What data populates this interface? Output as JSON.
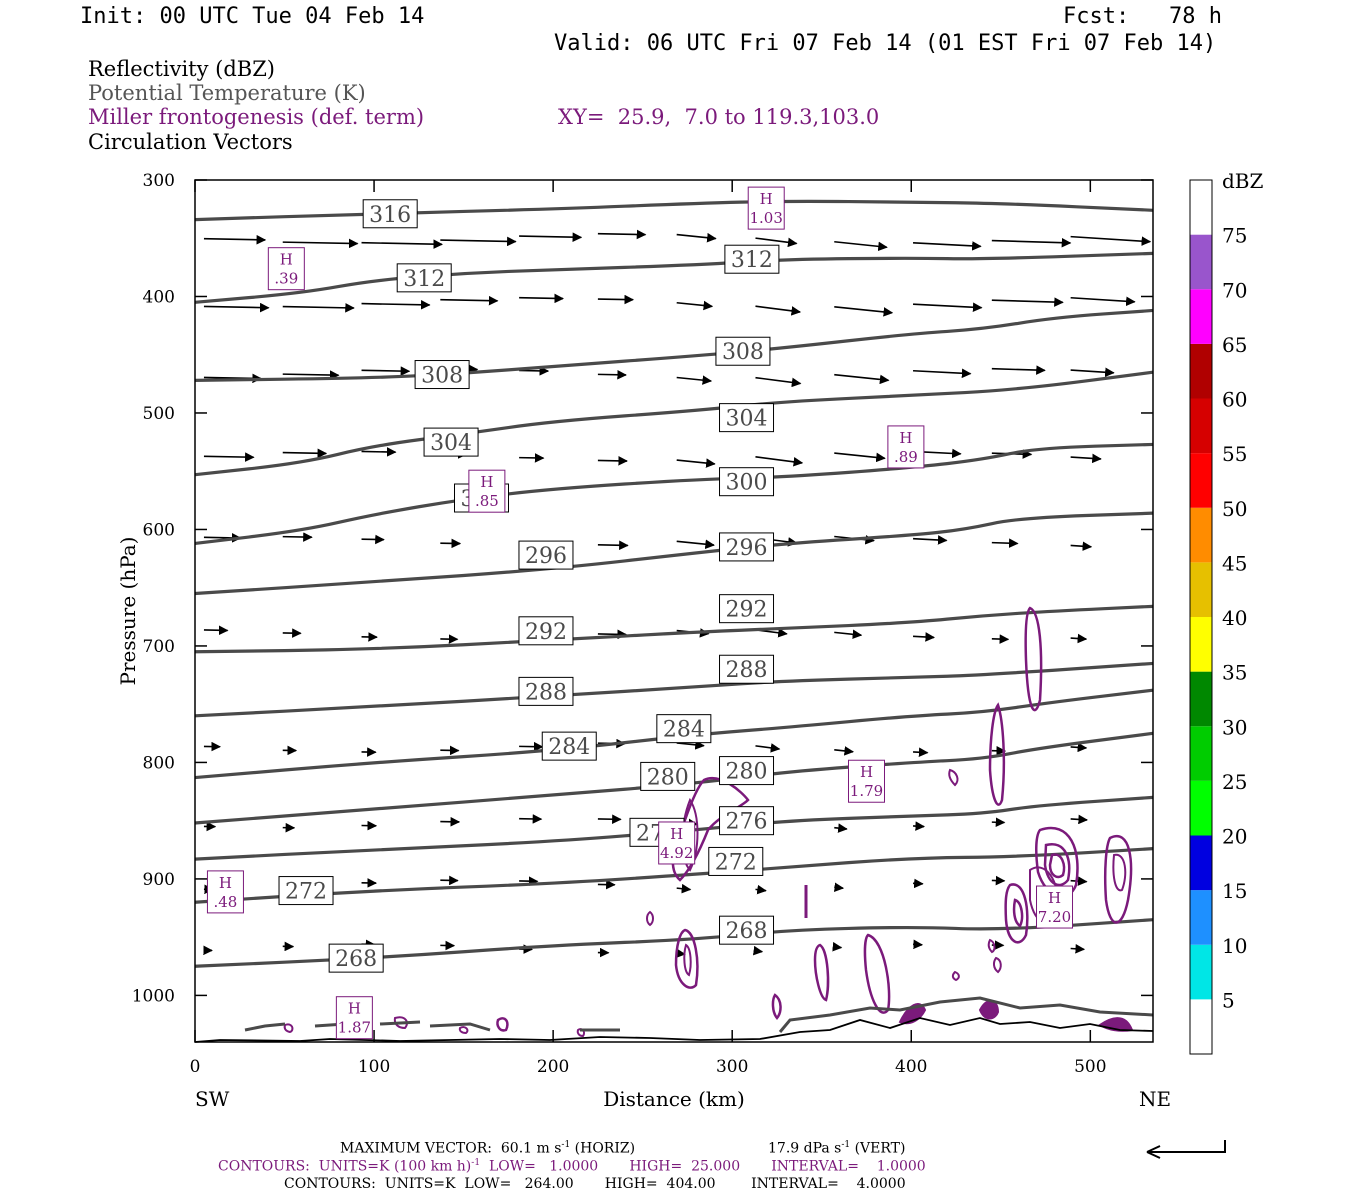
{
  "header": {
    "init": "Init: 00 UTC Tue 04 Feb 14",
    "fcst": "Fcst:   78 h",
    "valid": "Valid: 06 UTC Fri 07 Feb 14 (01 EST Fri 07 Feb 14)"
  },
  "legend": {
    "reflectivity": "Reflectivity (dBZ)",
    "theta": "Potential Temperature (K)",
    "frontogenesis": "Miller frontogenesis (def. term)",
    "xy": "XY=  25.9,  7.0 to 119.3,103.0",
    "vectors": "Circulation Vectors"
  },
  "footer": {
    "max_vector": "MAXIMUM VECTOR:  60.1 m s",
    "max_vector_sup": "-1",
    "max_vector_horiz": " (HORIZ)",
    "vert": "17.9 dPa s",
    "vert_sup": "-1",
    "vert_label": " (VERT)",
    "contours1": "CONTOURS:  UNITS=K (100 km h)",
    "contours1_sup": "-1",
    "contours1_rest": "  LOW=   1.0000       HIGH=  25.000       INTERVAL=    1.0000",
    "contours2": "CONTOURS:  UNITS=K  LOW=   264.00       HIGH=  404.00        INTERVAL=    4.0000"
  },
  "colors": {
    "theta": "#4a4a4a",
    "frontogenesis": "#7b1a7b",
    "vectors": "#000000"
  },
  "chart_data": {
    "type": "cross-section",
    "xlabel": "Distance (km)",
    "ylabel": "Pressure (hPa)",
    "xlim": [
      0,
      535
    ],
    "ylim": [
      1040,
      300
    ],
    "y_scale": "linear",
    "x_ticks": [
      0,
      100,
      200,
      300,
      400,
      500
    ],
    "y_ticks": [
      300,
      400,
      500,
      600,
      700,
      800,
      900,
      1000
    ],
    "left_end_label": "SW",
    "right_end_label": "NE",
    "colorbar": {
      "title": "dBZ",
      "levels": [
        5,
        10,
        15,
        20,
        25,
        30,
        35,
        40,
        45,
        50,
        55,
        60,
        65,
        70,
        75
      ],
      "colors": [
        "#ffffff",
        "#00e6e6",
        "#1e90ff",
        "#0000e0",
        "#00ff00",
        "#00cc00",
        "#008800",
        "#ffff00",
        "#e6c000",
        "#ff8c00",
        "#ff0000",
        "#d60000",
        "#b00000",
        "#ff00ff",
        "#9955cc",
        "#ffffff"
      ]
    },
    "theta_contours": [
      {
        "value": 268,
        "label": "268",
        "points": [
          [
            0,
            975
          ],
          [
            100,
            968
          ],
          [
            200,
            957
          ],
          [
            280,
            952
          ],
          [
            330,
            944
          ],
          [
            400,
            941
          ],
          [
            450,
            944
          ],
          [
            535,
            935
          ]
        ],
        "labels": [
          [
            90,
            968
          ],
          [
            308,
            944
          ]
        ]
      },
      {
        "value": 272,
        "label": "272",
        "points": [
          [
            0,
            920
          ],
          [
            100,
            910
          ],
          [
            200,
            904
          ],
          [
            280,
            896
          ],
          [
            330,
            890
          ],
          [
            400,
            882
          ],
          [
            460,
            881
          ],
          [
            535,
            874
          ]
        ],
        "labels": [
          [
            62,
            910
          ],
          [
            302,
            885
          ]
        ]
      },
      {
        "value": 276,
        "label": "276",
        "points": [
          [
            0,
            883
          ],
          [
            100,
            875
          ],
          [
            200,
            868
          ],
          [
            280,
            858
          ],
          [
            330,
            850
          ],
          [
            400,
            846
          ],
          [
            440,
            844
          ],
          [
            470,
            837
          ],
          [
            535,
            830
          ]
        ],
        "labels": [
          [
            258,
            860
          ],
          [
            308,
            850
          ]
        ]
      },
      {
        "value": 280,
        "label": "280",
        "points": [
          [
            0,
            852
          ],
          [
            100,
            840
          ],
          [
            200,
            828
          ],
          [
            280,
            818
          ],
          [
            330,
            808
          ],
          [
            400,
            800
          ],
          [
            440,
            797
          ],
          [
            470,
            788
          ],
          [
            535,
            775
          ]
        ],
        "labels": [
          [
            264,
            812
          ],
          [
            308,
            807
          ]
        ]
      },
      {
        "value": 284,
        "label": "284",
        "points": [
          [
            0,
            813
          ],
          [
            100,
            800
          ],
          [
            200,
            790
          ],
          [
            280,
            776
          ],
          [
            330,
            770
          ],
          [
            400,
            760
          ],
          [
            440,
            757
          ],
          [
            480,
            748
          ],
          [
            535,
            738
          ]
        ],
        "labels": [
          [
            209,
            786
          ],
          [
            273,
            771
          ]
        ]
      },
      {
        "value": 288,
        "label": "288",
        "points": [
          [
            0,
            760
          ],
          [
            100,
            752
          ],
          [
            200,
            743
          ],
          [
            280,
            735
          ],
          [
            330,
            730
          ],
          [
            400,
            727
          ],
          [
            440,
            725
          ],
          [
            535,
            715
          ]
        ],
        "labels": [
          [
            196,
            739
          ],
          [
            308,
            720
          ]
        ]
      },
      {
        "value": 292,
        "label": "292",
        "points": [
          [
            0,
            705
          ],
          [
            100,
            703
          ],
          [
            200,
            695
          ],
          [
            280,
            688
          ],
          [
            330,
            685
          ],
          [
            400,
            680
          ],
          [
            440,
            674
          ],
          [
            480,
            670
          ],
          [
            535,
            666
          ]
        ],
        "labels": [
          [
            196,
            687
          ],
          [
            308,
            668
          ]
        ]
      },
      {
        "value": 296,
        "label": "296",
        "points": [
          [
            0,
            655
          ],
          [
            100,
            645
          ],
          [
            200,
            634
          ],
          [
            280,
            620
          ],
          [
            330,
            612
          ],
          [
            400,
            605
          ],
          [
            430,
            600
          ],
          [
            460,
            590
          ],
          [
            535,
            586
          ]
        ],
        "labels": [
          [
            196,
            622
          ],
          [
            308,
            615
          ]
        ]
      },
      {
        "value": 300,
        "label": "300",
        "points": [
          [
            0,
            612
          ],
          [
            60,
            601
          ],
          [
            100,
            587
          ],
          [
            150,
            574
          ],
          [
            200,
            565
          ],
          [
            280,
            557
          ],
          [
            330,
            555
          ],
          [
            400,
            547
          ],
          [
            440,
            540
          ],
          [
            470,
            530
          ],
          [
            535,
            527
          ]
        ],
        "labels": [
          [
            160,
            573
          ],
          [
            308,
            559
          ]
        ]
      },
      {
        "value": 304,
        "label": "304",
        "points": [
          [
            0,
            553
          ],
          [
            60,
            543
          ],
          [
            100,
            528
          ],
          [
            150,
            518
          ],
          [
            200,
            507
          ],
          [
            280,
            498
          ],
          [
            330,
            490
          ],
          [
            400,
            485
          ],
          [
            460,
            480
          ],
          [
            535,
            465
          ]
        ],
        "labels": [
          [
            143,
            525
          ],
          [
            308,
            504
          ]
        ]
      },
      {
        "value": 308,
        "label": "308",
        "points": [
          [
            0,
            472
          ],
          [
            100,
            470
          ],
          [
            150,
            466
          ],
          [
            200,
            460
          ],
          [
            280,
            451
          ],
          [
            330,
            444
          ],
          [
            400,
            432
          ],
          [
            440,
            428
          ],
          [
            480,
            418
          ],
          [
            535,
            412
          ]
        ],
        "labels": [
          [
            138,
            467
          ],
          [
            306,
            447
          ]
        ]
      },
      {
        "value": 312,
        "label": "312",
        "points": [
          [
            0,
            405
          ],
          [
            60,
            397
          ],
          [
            100,
            386
          ],
          [
            150,
            380
          ],
          [
            200,
            377
          ],
          [
            280,
            373
          ],
          [
            330,
            368
          ],
          [
            400,
            367
          ],
          [
            440,
            368
          ],
          [
            535,
            363
          ]
        ],
        "labels": [
          [
            128,
            384
          ],
          [
            311,
            368
          ]
        ]
      },
      {
        "value": 316,
        "label": "316",
        "points": [
          [
            0,
            334
          ],
          [
            100,
            329
          ],
          [
            200,
            325
          ],
          [
            280,
            320
          ],
          [
            330,
            318
          ],
          [
            400,
            319
          ],
          [
            450,
            320
          ],
          [
            535,
            326
          ]
        ],
        "labels": [
          [
            109,
            329
          ]
        ]
      }
    ],
    "frontogenesis_maxima": [
      {
        "label": "H",
        "value": ".39",
        "x": 51,
        "y": 377
      },
      {
        "label": "H",
        "value": "1.03",
        "x": 319,
        "y": 325
      },
      {
        "label": "H",
        "value": ".89",
        "x": 397,
        "y": 530
      },
      {
        "label": "H",
        "value": ".85",
        "x": 163,
        "y": 568
      },
      {
        "label": "H",
        "value": "1.79",
        "x": 375,
        "y": 817
      },
      {
        "label": "H",
        "value": "4.92",
        "x": 269,
        "y": 870
      },
      {
        "label": "H",
        "value": ".48",
        "x": 17,
        "y": 912
      },
      {
        "label": "H",
        "value": "7.20",
        "x": 480,
        "y": 925
      },
      {
        "label": "H",
        "value": "1.87",
        "x": 89,
        "y": 1020
      }
    ]
  }
}
